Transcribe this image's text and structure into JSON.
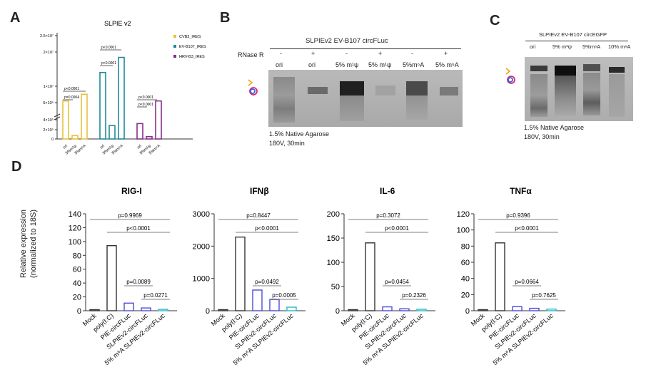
{
  "panels": {
    "a": "A",
    "b": "B",
    "c": "C",
    "d": "D"
  },
  "panel_a": {
    "title": "SLPIE v2",
    "legend": [
      "CVB3_IRES",
      "EV-B107_IRES",
      "HRV-B3_IRES"
    ],
    "y_ticks": [
      "2.5×10⁷",
      "2×10⁷",
      "1×10⁷",
      "5×10⁶",
      "4×10⁵",
      "2×10⁵",
      "0"
    ],
    "x_labels": [
      "ori",
      "5%m¹ψ",
      "5%m⁶A"
    ],
    "pvals": [
      "p<0.0001",
      "p<0.0001",
      "p<0.0001",
      "p<0.0001",
      "p<0.0001",
      "p=0.0004"
    ]
  },
  "panel_b": {
    "title": "SLPIEv2 EV-B107 circFLuc",
    "rnase_label": "RNase R",
    "signs": [
      "-",
      "+",
      "-",
      "+",
      "-",
      "+"
    ],
    "lanes": [
      "ori",
      "ori",
      "5% m¹ψ",
      "5% m¹ψ",
      "5%m⁶A",
      "5% m⁶A"
    ],
    "caption1": "1.5% Native Agarose",
    "caption2": "180V, 30min"
  },
  "panel_c": {
    "title": "SLPIEv2 EV-B107 circEGFP",
    "lanes": [
      "ori",
      "5% m¹ψ",
      "5%m⁶A",
      "10% m⁶A"
    ],
    "caption1": "1.5% Native Agarose",
    "caption2": "180V, 30min"
  },
  "panel_d": {
    "ylabel1": "Relative expression",
    "ylabel2": "(normalized to 18S)",
    "categories": [
      "Mock",
      "poly(I:C)",
      "PIE-circFLuc",
      "SLPIEv2-circFLuc",
      "5% m⁶A SLPIEv2-circFLuc"
    ]
  },
  "chart_data": [
    {
      "type": "bar",
      "title": "RIG-I",
      "categories": [
        "Mock",
        "poly(I:C)",
        "PIE-circFLuc",
        "SLPIEv2-circFLuc",
        "5% m⁶A SLPIEv2-circFLuc"
      ],
      "values": [
        1,
        94,
        11,
        4,
        2
      ],
      "ylim": [
        0,
        140
      ],
      "yticks": [
        "0",
        "20",
        "40",
        "60",
        "80",
        "100",
        "120",
        "140"
      ],
      "pvals": [
        "p=0.9969",
        "p<0.0001",
        "p=0.0089",
        "p=0.0271"
      ]
    },
    {
      "type": "bar",
      "title": "IFNβ",
      "categories": [
        "Mock",
        "poly(I:C)",
        "PIE-circFLuc",
        "SLPIEv2-circFLuc",
        "5% m⁶A SLPIEv2-circFLuc"
      ],
      "values": [
        10,
        2280,
        640,
        350,
        110
      ],
      "ylim": [
        0,
        3000
      ],
      "yticks": [
        "0",
        "1000",
        "2000",
        "3000"
      ],
      "pvals": [
        "p=0.8447",
        "p<0.0001",
        "p=0.0492",
        "p=0.0005"
      ]
    },
    {
      "type": "bar",
      "title": "IL-6",
      "categories": [
        "Mock",
        "poly(I:C)",
        "PIE-circFLuc",
        "SLPIEv2-circFLuc",
        "5% m⁶A SLPIEv2-circFLuc"
      ],
      "values": [
        1,
        140,
        8,
        4,
        3
      ],
      "ylim": [
        0,
        200
      ],
      "yticks": [
        "0",
        "50",
        "100",
        "150",
        "200"
      ],
      "pvals": [
        "p=0.3072",
        "p<0.0001",
        "p=0.0454",
        "p=0.2326"
      ]
    },
    {
      "type": "bar",
      "title": "TNFα",
      "categories": [
        "Mock",
        "poly(I:C)",
        "PIE-circFLuc",
        "SLPIEv2-circFLuc",
        "5% m⁶A SLPIEv2-circFLuc"
      ],
      "values": [
        1,
        84,
        5,
        3,
        2
      ],
      "ylim": [
        0,
        120
      ],
      "yticks": [
        "0",
        "20",
        "40",
        "60",
        "80",
        "100",
        "120"
      ],
      "pvals": [
        "p=0.9396",
        "p<0.0001",
        "p=0.0664",
        "p=0.7625"
      ]
    },
    {
      "type": "bar",
      "title": "SLPIE v2",
      "categories": [
        "CVB3_IRES",
        "EV-B107_IRES",
        "HRV-B3_IRES"
      ],
      "series": [
        {
          "name": "ori",
          "values": [
            5500000,
            14000000,
            4000000
          ]
        },
        {
          "name": "5%m¹ψ",
          "values": [
            900000,
            3500000,
            600000
          ]
        },
        {
          "name": "5%m⁶A",
          "values": [
            7500000,
            18500000,
            5500000
          ]
        }
      ]
    }
  ],
  "colors": {
    "cvb3": "#e8c23a",
    "ev": "#1f8a9a",
    "hrv": "#8a2d8e",
    "blue": "#4b4bd6",
    "cyan": "#2ab7c9"
  }
}
